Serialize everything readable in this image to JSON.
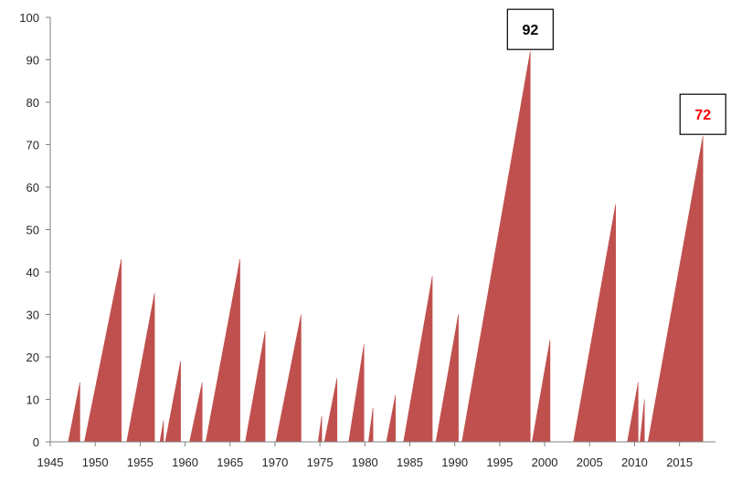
{
  "chart_data": {
    "type": "area",
    "title": "",
    "xlabel": "",
    "ylabel": "",
    "xlim": [
      1945,
      2019
    ],
    "ylim": [
      0,
      100
    ],
    "x_ticks": [
      1945,
      1950,
      1955,
      1960,
      1965,
      1970,
      1975,
      1980,
      1985,
      1990,
      1995,
      2000,
      2005,
      2010,
      2015
    ],
    "y_ticks": [
      0,
      10,
      20,
      30,
      40,
      50,
      60,
      70,
      80,
      90,
      100
    ],
    "grid": false,
    "series_color": "#c0504d",
    "segments": [
      {
        "start": 1947.0,
        "end": 1948.3,
        "peak": 14
      },
      {
        "start": 1948.8,
        "end": 1952.9,
        "peak": 43
      },
      {
        "start": 1953.5,
        "end": 1956.6,
        "peak": 35
      },
      {
        "start": 1957.2,
        "end": 1957.6,
        "peak": 5
      },
      {
        "start": 1957.8,
        "end": 1959.5,
        "peak": 19
      },
      {
        "start": 1960.5,
        "end": 1961.9,
        "peak": 14
      },
      {
        "start": 1962.3,
        "end": 1966.1,
        "peak": 43
      },
      {
        "start": 1966.7,
        "end": 1968.9,
        "peak": 26
      },
      {
        "start": 1970.1,
        "end": 1972.9,
        "peak": 30
      },
      {
        "start": 1974.8,
        "end": 1975.2,
        "peak": 6
      },
      {
        "start": 1975.5,
        "end": 1976.9,
        "peak": 15
      },
      {
        "start": 1978.2,
        "end": 1979.9,
        "peak": 23
      },
      {
        "start": 1980.4,
        "end": 1980.9,
        "peak": 8
      },
      {
        "start": 1982.4,
        "end": 1983.4,
        "peak": 11
      },
      {
        "start": 1984.3,
        "end": 1987.5,
        "peak": 39
      },
      {
        "start": 1987.9,
        "end": 1990.4,
        "peak": 30
      },
      {
        "start": 1990.8,
        "end": 1998.4,
        "peak": 92
      },
      {
        "start": 1998.6,
        "end": 2000.6,
        "peak": 24
      },
      {
        "start": 2003.2,
        "end": 2007.9,
        "peak": 56
      },
      {
        "start": 2009.2,
        "end": 2010.4,
        "peak": 14
      },
      {
        "start": 2010.6,
        "end": 2011.1,
        "peak": 10
      },
      {
        "start": 2011.5,
        "end": 2017.6,
        "peak": 72
      }
    ],
    "annotations": [
      {
        "label": "92",
        "x": 1998.4,
        "y": 92,
        "color": "#000000"
      },
      {
        "label": "72",
        "x": 2017.6,
        "y": 72,
        "color": "#ff0000"
      }
    ]
  }
}
